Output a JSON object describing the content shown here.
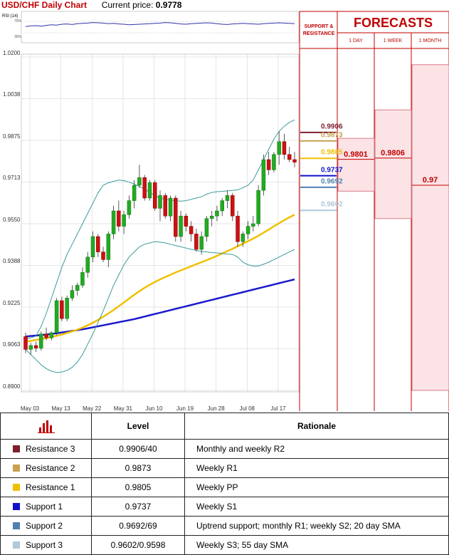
{
  "header": {
    "title": "USD/CHF Daily Chart",
    "price_label": "Current price:",
    "price_value": "0.9778"
  },
  "rsi": {
    "label": "RSI (14)",
    "ticks": [
      "70%",
      "30%"
    ],
    "levels": [
      70,
      30
    ],
    "values": [
      52,
      54,
      55,
      53,
      56,
      58,
      57,
      60,
      61,
      59,
      62,
      63,
      64,
      66,
      65,
      64,
      62,
      63,
      61,
      60,
      58,
      59,
      60,
      61,
      62,
      63,
      64,
      66,
      65,
      63,
      61,
      60,
      62,
      63,
      64,
      65,
      64,
      62,
      60,
      59,
      61,
      62,
      63,
      62,
      61,
      60,
      62,
      63,
      64,
      65,
      64,
      63,
      62
    ]
  },
  "panel_headers": {
    "support_resistance": [
      "SUPPORT &",
      "RESISTANCE"
    ],
    "forecasts_title": "FORECASTS",
    "periods": [
      "1 DAY",
      "1 WEEK",
      "1 MONTH"
    ]
  },
  "sr_levels": [
    {
      "label": "0.9906",
      "value": 0.9906,
      "color": "#7f1d2d"
    },
    {
      "label": "0.9873",
      "value": 0.9873,
      "color": "#c8a050"
    },
    {
      "label": "0.9805",
      "value": 0.9805,
      "color": "#f0c000"
    },
    {
      "label": "0.9737",
      "value": 0.9737,
      "color": "#1010cc"
    },
    {
      "label": "0.9692",
      "value": 0.9692,
      "color": "#5080b0"
    },
    {
      "label": "0.9602",
      "value": 0.9602,
      "color": "#b0c8d8"
    }
  ],
  "forecasts": [
    {
      "period": "1 DAY",
      "value": "0.9801",
      "numeric": 0.9801,
      "range": [
        0.9677,
        0.9883
      ]
    },
    {
      "period": "1 WEEK",
      "value": "0.9806",
      "numeric": 0.9806,
      "range": [
        0.957,
        0.9994
      ]
    },
    {
      "period": "1 MONTH",
      "value": "0.97",
      "numeric": 0.97,
      "range": [
        0.89,
        1.017
      ]
    }
  ],
  "chart_data": {
    "type": "candlestick",
    "title": "USD/CHF Daily Chart",
    "ylim": [
      0.89,
      1.02
    ],
    "yticks": [
      "1.0200",
      "1.0038",
      "0.9875",
      "0.9713",
      "0.9550",
      "0.9388",
      "0.9225",
      "0.9063",
      "0.8900"
    ],
    "xticks": [
      "May 03",
      "May 13",
      "May 22",
      "May 31",
      "Jun 10",
      "Jun 19",
      "Jun 28",
      "Jul 08",
      "Jul 17"
    ],
    "grid": true,
    "candles": [
      [
        0.911,
        0.9125,
        0.9045,
        0.906
      ],
      [
        0.906,
        0.9085,
        0.904,
        0.9075
      ],
      [
        0.9075,
        0.909,
        0.905,
        0.9065
      ],
      [
        0.9065,
        0.913,
        0.9055,
        0.912
      ],
      [
        0.912,
        0.9145,
        0.9095,
        0.9105
      ],
      [
        0.9105,
        0.913,
        0.9095,
        0.9125
      ],
      [
        0.9125,
        0.926,
        0.9115,
        0.925
      ],
      [
        0.925,
        0.9265,
        0.917,
        0.918
      ],
      [
        0.918,
        0.927,
        0.917,
        0.926
      ],
      [
        0.926,
        0.931,
        0.925,
        0.929
      ],
      [
        0.929,
        0.932,
        0.927,
        0.931
      ],
      [
        0.931,
        0.938,
        0.93,
        0.936
      ],
      [
        0.936,
        0.944,
        0.934,
        0.942
      ],
      [
        0.942,
        0.952,
        0.94,
        0.95
      ],
      [
        0.95,
        0.951,
        0.942,
        0.944
      ],
      [
        0.944,
        0.946,
        0.94,
        0.941
      ],
      [
        0.941,
        0.952,
        0.938,
        0.951
      ],
      [
        0.951,
        0.962,
        0.949,
        0.96
      ],
      [
        0.96,
        0.964,
        0.952,
        0.954
      ],
      [
        0.954,
        0.96,
        0.951,
        0.9585
      ],
      [
        0.9585,
        0.966,
        0.957,
        0.964
      ],
      [
        0.964,
        0.972,
        0.961,
        0.97
      ],
      [
        0.97,
        0.978,
        0.969,
        0.973
      ],
      [
        0.973,
        0.974,
        0.964,
        0.965
      ],
      [
        0.965,
        0.972,
        0.964,
        0.971
      ],
      [
        0.971,
        0.972,
        0.96,
        0.961
      ],
      [
        0.961,
        0.968,
        0.956,
        0.966
      ],
      [
        0.966,
        0.967,
        0.957,
        0.958
      ],
      [
        0.958,
        0.966,
        0.956,
        0.965
      ],
      [
        0.965,
        0.966,
        0.948,
        0.95
      ],
      [
        0.95,
        0.96,
        0.948,
        0.958
      ],
      [
        0.958,
        0.959,
        0.952,
        0.954
      ],
      [
        0.954,
        0.956,
        0.948,
        0.951
      ],
      [
        0.951,
        0.953,
        0.944,
        0.945
      ],
      [
        0.945,
        0.952,
        0.943,
        0.95
      ],
      [
        0.95,
        0.958,
        0.948,
        0.957
      ],
      [
        0.957,
        0.96,
        0.954,
        0.958
      ],
      [
        0.958,
        0.962,
        0.956,
        0.96
      ],
      [
        0.96,
        0.965,
        0.958,
        0.964
      ],
      [
        0.964,
        0.968,
        0.961,
        0.966
      ],
      [
        0.966,
        0.967,
        0.956,
        0.958
      ],
      [
        0.958,
        0.96,
        0.946,
        0.948
      ],
      [
        0.948,
        0.952,
        0.946,
        0.951
      ],
      [
        0.951,
        0.956,
        0.949,
        0.954
      ],
      [
        0.954,
        0.958,
        0.952,
        0.955
      ],
      [
        0.955,
        0.97,
        0.954,
        0.968
      ],
      [
        0.968,
        0.982,
        0.966,
        0.98
      ],
      [
        0.98,
        0.983,
        0.974,
        0.976
      ],
      [
        0.976,
        0.983,
        0.975,
        0.982
      ],
      [
        0.982,
        0.991,
        0.978,
        0.987
      ],
      [
        0.987,
        0.99,
        0.98,
        0.982
      ],
      [
        0.982,
        0.985,
        0.979,
        0.98
      ],
      [
        0.98,
        0.983,
        0.977,
        0.979
      ]
    ],
    "series": [
      {
        "name": "",
        "color": "#1a1acc",
        "values": [
          0.911,
          0.9112,
          0.9114,
          0.9116,
          0.9118,
          0.912,
          0.9123,
          0.9126,
          0.9129,
          0.9132,
          0.9135,
          0.9138,
          0.9142,
          0.9146,
          0.915,
          0.9154,
          0.9158,
          0.9162,
          0.9166,
          0.917,
          0.9174,
          0.9178,
          0.9183,
          0.9188,
          0.9193,
          0.9198,
          0.9203,
          0.9208,
          0.9213,
          0.9218,
          0.9223,
          0.9228,
          0.9233,
          0.9238,
          0.9243,
          0.9248,
          0.9253,
          0.9258,
          0.9263,
          0.9268,
          0.9273,
          0.9278,
          0.9283,
          0.9288,
          0.9293,
          0.9298,
          0.9303,
          0.9308,
          0.9313,
          0.9318,
          0.9323,
          0.9328,
          0.9333
        ]
      },
      {
        "name": "",
        "color": "#f0c000",
        "values": [
          0.909,
          0.9093,
          0.9097,
          0.91,
          0.9104,
          0.9108,
          0.9113,
          0.9118,
          0.9124,
          0.913,
          0.9137,
          0.9145,
          0.9154,
          0.9164,
          0.9175,
          0.9187,
          0.92,
          0.9214,
          0.9228,
          0.9243,
          0.9258,
          0.9273,
          0.9287,
          0.93,
          0.9312,
          0.9323,
          0.9333,
          0.9342,
          0.9351,
          0.936,
          0.9368,
          0.9376,
          0.9384,
          0.9392,
          0.94,
          0.9408,
          0.9416,
          0.9425,
          0.9434,
          0.9443,
          0.9452,
          0.9462,
          0.9472,
          0.9482,
          0.9492,
          0.9503,
          0.9515,
          0.9527,
          0.954,
          0.9552,
          0.9564,
          0.9575,
          0.9585
        ]
      },
      {
        "name": "",
        "color": "#3c9a9a",
        "values": [
          0.91,
          0.9105,
          0.9112,
          0.915,
          0.92,
          0.926,
          0.932,
          0.938,
          0.943,
          0.947,
          0.951,
          0.955,
          0.959,
          0.963,
          0.967,
          0.97,
          0.971,
          0.9715,
          0.972,
          0.9718,
          0.9712,
          0.9705,
          0.9695,
          0.9685,
          0.9672,
          0.966,
          0.965,
          0.9645,
          0.9642,
          0.964,
          0.9638,
          0.964,
          0.9645,
          0.965,
          0.9655,
          0.9665,
          0.9672,
          0.9675,
          0.9676,
          0.9678,
          0.968,
          0.9682,
          0.969,
          0.97,
          0.972,
          0.976,
          0.98,
          0.984,
          0.988,
          0.991,
          0.993,
          0.9945,
          0.9955
        ]
      },
      {
        "name": "",
        "color": "#3c9a9a",
        "values": [
          0.906,
          0.904,
          0.902,
          0.9,
          0.8985,
          0.8975,
          0.897,
          0.8972,
          0.8978,
          0.899,
          0.901,
          0.904,
          0.908,
          0.912,
          0.9165,
          0.921,
          0.926,
          0.931,
          0.935,
          0.939,
          0.942,
          0.944,
          0.946,
          0.947,
          0.9475,
          0.948,
          0.9478,
          0.9475,
          0.947,
          0.9465,
          0.946,
          0.9455,
          0.945,
          0.9446,
          0.9442,
          0.944,
          0.9438,
          0.9436,
          0.9434,
          0.9432,
          0.943,
          0.942,
          0.94,
          0.939,
          0.9385,
          0.9385,
          0.9392,
          0.94,
          0.941,
          0.942,
          0.943,
          0.944,
          0.945
        ]
      }
    ]
  },
  "table": {
    "headers": [
      "",
      "Level",
      "Rationale"
    ],
    "rows": [
      {
        "name": "Resistance 3",
        "level": "0.9906/40",
        "rationale": "Monthly and weekly R2",
        "color": "#7f1d2d"
      },
      {
        "name": "Resistance 2",
        "level": "0.9873",
        "rationale": "Weekly R1",
        "color": "#c8a050"
      },
      {
        "name": "Resistance 1",
        "level": "0.9805",
        "rationale": "Weekly PP",
        "color": "#f0c000"
      },
      {
        "name": "Support 1",
        "level": "0.9737",
        "rationale": "Weekly S1",
        "color": "#1010cc"
      },
      {
        "name": "Support 2",
        "level": "0.9692/69",
        "rationale": "Uptrend support; monthly R1; weekly S2; 20 day SMA",
        "color": "#5080b0"
      },
      {
        "name": "Support 3",
        "level": "0.9602/0.9598",
        "rationale": "Weekly S3; 55 day SMA",
        "color": "#b0c8d8"
      }
    ]
  }
}
